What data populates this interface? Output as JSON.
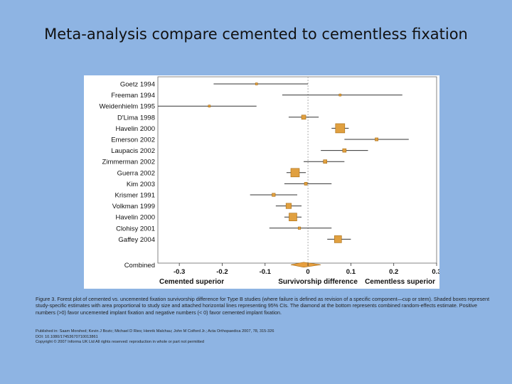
{
  "slide": {
    "title": "Meta-analysis compare cemented to cementless fixation"
  },
  "chart_data": {
    "type": "forest",
    "xlabel": "Survivorship difference",
    "xlim": [
      -0.35,
      0.3
    ],
    "xticks": [
      -0.3,
      -0.2,
      -0.1,
      0,
      0.1,
      0.2,
      0.3
    ],
    "xtick_labels": [
      "-0.3",
      "-0.2",
      "-0.1",
      "0",
      "0.1",
      "0.2",
      "0.3"
    ],
    "left_label": "Cemented superior",
    "right_label": "Cementless superior",
    "colors": {
      "box": "#e0a040",
      "box_border": "#a86a10",
      "line": "#333333",
      "diamond": "#e8a040"
    },
    "studies": [
      {
        "name": "Goetz 1994",
        "est": -0.12,
        "lo": -0.22,
        "hi": 0.0,
        "weight": 0.0
      },
      {
        "name": "Freeman 1994",
        "est": 0.075,
        "lo": -0.06,
        "hi": 0.22,
        "weight": 0.0
      },
      {
        "name": "Weidenhielm 1995",
        "est": -0.23,
        "lo": -0.35,
        "hi": -0.12,
        "weight": 0.0
      },
      {
        "name": "D'Lima 1998",
        "est": -0.01,
        "lo": -0.045,
        "hi": 0.025,
        "weight": 0.3
      },
      {
        "name": "Havelin 2000",
        "est": 0.075,
        "lo": 0.055,
        "hi": 0.095,
        "weight": 1.0
      },
      {
        "name": "Emerson 2002",
        "est": 0.16,
        "lo": 0.085,
        "hi": 0.235,
        "weight": 0.12
      },
      {
        "name": "Laupacis 2002",
        "est": 0.085,
        "lo": 0.03,
        "hi": 0.14,
        "weight": 0.2
      },
      {
        "name": "Zimmerman 2002",
        "est": 0.04,
        "lo": -0.01,
        "hi": 0.085,
        "weight": 0.2
      },
      {
        "name": "Guerra 2002",
        "est": -0.03,
        "lo": -0.05,
        "hi": -0.005,
        "weight": 0.9
      },
      {
        "name": "Kim 2003",
        "est": -0.005,
        "lo": -0.055,
        "hi": 0.055,
        "weight": 0.1
      },
      {
        "name": "Krismer 1991",
        "est": -0.08,
        "lo": -0.135,
        "hi": -0.025,
        "weight": 0.15
      },
      {
        "name": "Volkman 1999",
        "est": -0.045,
        "lo": -0.075,
        "hi": -0.015,
        "weight": 0.45
      },
      {
        "name": "Havelin 2000",
        "est": -0.035,
        "lo": -0.055,
        "hi": -0.015,
        "weight": 0.8
      },
      {
        "name": "Clohisy 2001",
        "est": -0.02,
        "lo": -0.09,
        "hi": 0.055,
        "weight": 0.05
      },
      {
        "name": "Gaffey 2004",
        "est": 0.07,
        "lo": 0.045,
        "hi": 0.1,
        "weight": 0.7
      }
    ],
    "combined": {
      "name": "Combined",
      "est": -0.01,
      "lo": -0.04,
      "hi": 0.03
    }
  },
  "caption": {
    "text": "Figure 3. Forest plot of cemented vs. uncemented fixation survivorship difference for Type B studies (where failure is defined as revision of a specific component—cup or stem). Shaded boxes represent study-specific estimates with area proportional to study size and attached horizontal lines representing 95% CIs. The diamond at the bottom represents combined random-effects estimate. Positive numbers (>0) favor uncemented implant fixation and negative numbers (< 0) favor cemented implant fixation."
  },
  "credits": {
    "line1": "Published in: Saam Morshed; Kevin J Bozic; Michael D Ries; Henrik Malchau; John M Colford Jr.; Acta Orthopaedica 2007, 78, 315-326",
    "line2": "DOI: 10.1080/17453670710013861",
    "line3": "Copyright © 2007 Informa UK Ltd All rights reserved: reproduction in whole or part not permitted"
  }
}
